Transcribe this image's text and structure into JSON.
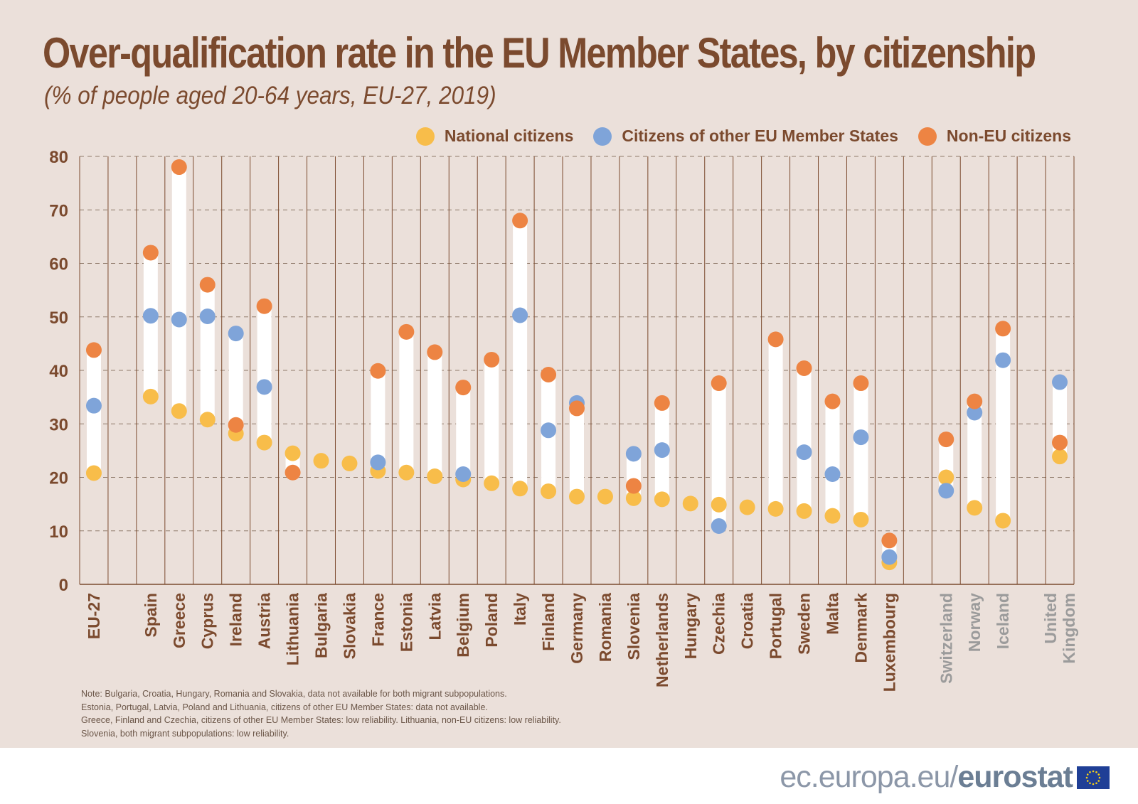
{
  "title": "Over-qualification rate in the EU Member States, by citizenship",
  "subtitle": "(% of people aged 20-64 years, EU-27, 2019)",
  "colors": {
    "national": "#f8bd4a",
    "eu": "#7fa4d9",
    "non_eu": "#ed8443",
    "text_brown": "#7b4a2e",
    "grey_label": "#9b9b9b",
    "background": "#ebe0da"
  },
  "legend": {
    "national": "National citizens",
    "eu": "Citizens of other EU Member States",
    "non_eu": "Non-EU citizens"
  },
  "chart_data": {
    "type": "dot-range",
    "title": "Over-qualification rate in the EU Member States, by citizenship",
    "subtitle": "(% of people aged 20-64 years, EU-27, 2019)",
    "ylim": [
      0,
      80
    ],
    "yticks": [
      0,
      10,
      20,
      30,
      40,
      50,
      60,
      70,
      80
    ],
    "grid": true,
    "legend_position": "top-right",
    "series_names": [
      "National citizens",
      "Citizens of other EU Member States",
      "Non-EU citizens"
    ],
    "countries": [
      {
        "name": "EU-27",
        "national": 20.8,
        "eu": 33.4,
        "non_eu": 43.8,
        "non_member": false
      },
      {
        "name": "",
        "gap": true
      },
      {
        "name": "Spain",
        "national": 35.1,
        "eu": 50.2,
        "non_eu": 62.0,
        "non_member": false
      },
      {
        "name": "Greece",
        "national": 32.4,
        "eu": 49.5,
        "non_eu": 78.0,
        "non_member": false
      },
      {
        "name": "Cyprus",
        "national": 30.8,
        "eu": 50.1,
        "non_eu": 56.0,
        "non_member": false
      },
      {
        "name": "Ireland",
        "national": 28.2,
        "eu": 46.9,
        "non_eu": 29.8,
        "non_member": false
      },
      {
        "name": "Austria",
        "national": 26.5,
        "eu": 36.9,
        "non_eu": 52.0,
        "non_member": false
      },
      {
        "name": "Lithuania",
        "national": 24.5,
        "eu": null,
        "non_eu": 20.9,
        "non_member": false
      },
      {
        "name": "Bulgaria",
        "national": 23.1,
        "eu": null,
        "non_eu": null,
        "non_member": false
      },
      {
        "name": "Slovakia",
        "national": 22.6,
        "eu": null,
        "non_eu": null,
        "non_member": false
      },
      {
        "name": "France",
        "national": 21.2,
        "eu": 22.8,
        "non_eu": 39.9,
        "non_member": false
      },
      {
        "name": "Estonia",
        "national": 20.9,
        "eu": null,
        "non_eu": 47.2,
        "non_member": false
      },
      {
        "name": "Latvia",
        "national": 20.2,
        "eu": null,
        "non_eu": 43.4,
        "non_member": false
      },
      {
        "name": "Belgium",
        "national": 19.6,
        "eu": 20.6,
        "non_eu": 36.8,
        "non_member": false
      },
      {
        "name": "Poland",
        "national": 18.9,
        "eu": null,
        "non_eu": 42.0,
        "non_member": false
      },
      {
        "name": "Italy",
        "national": 17.9,
        "eu": 50.3,
        "non_eu": 68.0,
        "non_member": false
      },
      {
        "name": "Finland",
        "national": 17.4,
        "eu": 28.8,
        "non_eu": 39.2,
        "non_member": false
      },
      {
        "name": "Germany",
        "national": 16.4,
        "eu": 33.9,
        "non_eu": 32.9,
        "non_member": false
      },
      {
        "name": "Romania",
        "national": 16.4,
        "eu": null,
        "non_eu": null,
        "non_member": false
      },
      {
        "name": "Slovenia",
        "national": 16.1,
        "eu": 24.4,
        "non_eu": 18.4,
        "non_member": false
      },
      {
        "name": "Netherlands",
        "national": 15.9,
        "eu": 25.1,
        "non_eu": 33.9,
        "non_member": false
      },
      {
        "name": "Hungary",
        "national": 15.1,
        "eu": null,
        "non_eu": null,
        "non_member": false
      },
      {
        "name": "Czechia",
        "national": 14.9,
        "eu": 10.9,
        "non_eu": 37.6,
        "non_member": false
      },
      {
        "name": "Croatia",
        "national": 14.4,
        "eu": null,
        "non_eu": null,
        "non_member": false
      },
      {
        "name": "Portugal",
        "national": 14.1,
        "eu": null,
        "non_eu": 45.8,
        "non_member": false
      },
      {
        "name": "Sweden",
        "national": 13.7,
        "eu": 24.7,
        "non_eu": 40.4,
        "non_member": false
      },
      {
        "name": "Malta",
        "national": 12.8,
        "eu": 20.6,
        "non_eu": 34.2,
        "non_member": false
      },
      {
        "name": "Denmark",
        "national": 12.1,
        "eu": 27.5,
        "non_eu": 37.6,
        "non_member": false
      },
      {
        "name": "Luxembourg",
        "national": 4.1,
        "eu": 5.1,
        "non_eu": 8.2,
        "non_member": false
      },
      {
        "name": "",
        "gap": true
      },
      {
        "name": "Switzerland",
        "national": 20.0,
        "eu": 17.5,
        "non_eu": 27.1,
        "non_member": true
      },
      {
        "name": "Norway",
        "national": 14.3,
        "eu": 32.1,
        "non_eu": 34.2,
        "non_member": true
      },
      {
        "name": "Iceland",
        "national": 11.9,
        "eu": 41.9,
        "non_eu": 47.8,
        "non_member": true
      },
      {
        "name": "",
        "gap": true
      },
      {
        "name": "United Kingdom",
        "label_lines": [
          "United",
          "Kingdom"
        ],
        "national": 23.9,
        "eu": 37.8,
        "non_eu": 26.5,
        "non_member": true
      }
    ]
  },
  "notes": [
    "Note: Bulgaria, Croatia, Hungary, Romania and Slovakia, data not available for both migrant subpopulations.",
    "Estonia, Portugal, Latvia, Poland and Lithuania, citizens of other EU Member States: data not available.",
    "Greece, Finland and Czechia, citizens of other EU Member States: low reliability. Lithuania, non-EU citizens: low reliability.",
    "Slovenia, both migrant subpopulations: low reliability."
  ],
  "footer": {
    "site": "ec.europa.eu/",
    "brand": "eurostat"
  }
}
